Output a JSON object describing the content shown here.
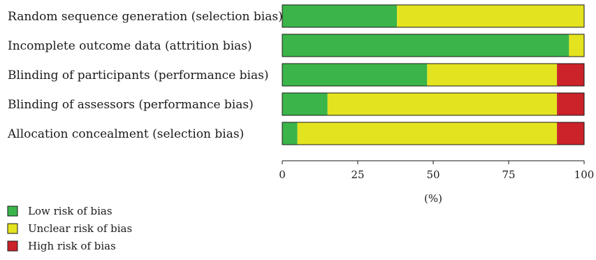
{
  "chart_data": {
    "type": "bar",
    "orientation": "horizontal",
    "stacked": true,
    "categories": [
      "Random sequence generation (selection bias)",
      "Incomplete outcome data (attrition bias)",
      "Blinding of participants (performance bias)",
      "Blinding of assessors (performance bias)",
      "Allocation concealment (selection bias)"
    ],
    "series": [
      {
        "name": "Low risk of bias",
        "color": "#3bb54a",
        "values": [
          38,
          95,
          48,
          15,
          5
        ]
      },
      {
        "name": "Unclear risk of bias",
        "color": "#e3e31f",
        "values": [
          62,
          5,
          43,
          76,
          86
        ]
      },
      {
        "name": "High risk of bias",
        "color": "#cc2229",
        "values": [
          0,
          0,
          9,
          9,
          9
        ]
      }
    ],
    "xlabel": "(%)",
    "xlim": [
      0,
      100
    ],
    "xticks": [
      "0",
      "25",
      "50",
      "75",
      "100"
    ],
    "grid": false,
    "legend_position": "bottom-left"
  }
}
